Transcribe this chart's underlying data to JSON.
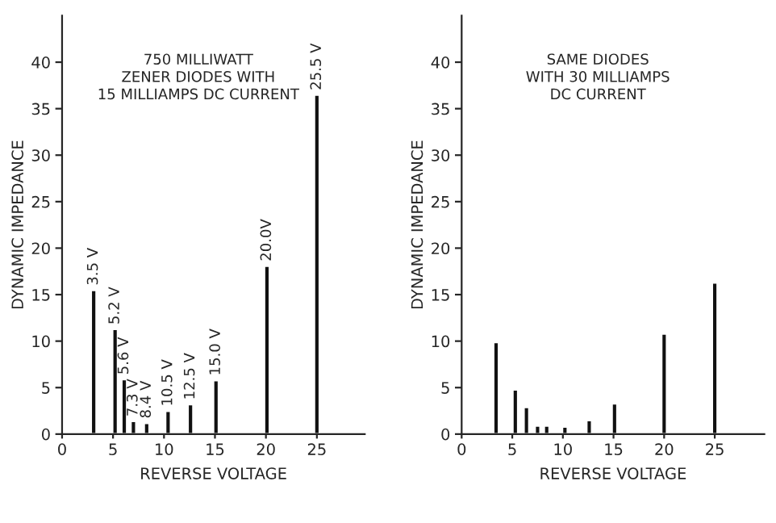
{
  "chart_data": [
    {
      "type": "bar",
      "title": "750 MILLIWATT\nZENER DIODES WITH\n15 MILLIAMPS DC CURRENT",
      "xlabel": "REVERSE VOLTAGE",
      "ylabel": "DYNAMIC IMPEDANCE",
      "x": [
        3.1,
        5.2,
        6.1,
        7.0,
        8.3,
        10.4,
        12.6,
        15.1,
        20.1,
        25.0
      ],
      "values": [
        15.5,
        11.3,
        5.9,
        1.4,
        1.2,
        2.5,
        3.2,
        5.8,
        18.1,
        36.5
      ],
      "color": "#111111",
      "xlim": [
        0,
        29.7
      ],
      "ylim": [
        0,
        45
      ],
      "xticks": [
        0,
        5,
        10,
        15,
        20,
        25
      ],
      "yticks": [
        0,
        5,
        10,
        15,
        20,
        25,
        30,
        35,
        40
      ],
      "grid": false,
      "annotations": [
        {
          "text": "3.5 V",
          "x": 3.1,
          "y": 15.5
        },
        {
          "text": "5.2 V",
          "x": 5.2,
          "y": 11.3
        },
        {
          "text": "5.6 V",
          "x": 6.1,
          "y": 5.9
        },
        {
          "text": "7.3 V",
          "x": 7.0,
          "y": 1.4
        },
        {
          "text": "8.4 V",
          "x": 8.3,
          "y": 1.2
        },
        {
          "text": "10.5 V",
          "x": 10.4,
          "y": 2.5
        },
        {
          "text": "12.5 V",
          "x": 12.6,
          "y": 3.2
        },
        {
          "text": "15.0 V",
          "x": 15.1,
          "y": 5.8
        },
        {
          "text": "20.0V",
          "x": 20.1,
          "y": 18.1
        },
        {
          "text": "25.5 V",
          "x": 25.0,
          "y": 36.5
        }
      ]
    },
    {
      "type": "bar",
      "title": "SAME DIODES\nWITH 30 MILLIAMPS\nDC CURRENT",
      "xlabel": "REVERSE VOLTAGE",
      "ylabel": "DYNAMIC IMPEDANCE",
      "x": [
        3.4,
        5.3,
        6.4,
        7.5,
        8.4,
        10.2,
        12.6,
        15.1,
        20.0,
        25.0
      ],
      "values": [
        9.9,
        4.8,
        2.9,
        0.9,
        0.9,
        0.8,
        1.5,
        3.3,
        10.8,
        16.3
      ],
      "color": "#111111",
      "xlim": [
        0,
        29.9
      ],
      "ylim": [
        0,
        45
      ],
      "xticks": [
        0,
        5,
        10,
        15,
        20,
        25
      ],
      "yticks": [
        0,
        5,
        10,
        15,
        20,
        25,
        30,
        35,
        40
      ],
      "grid": false
    }
  ]
}
